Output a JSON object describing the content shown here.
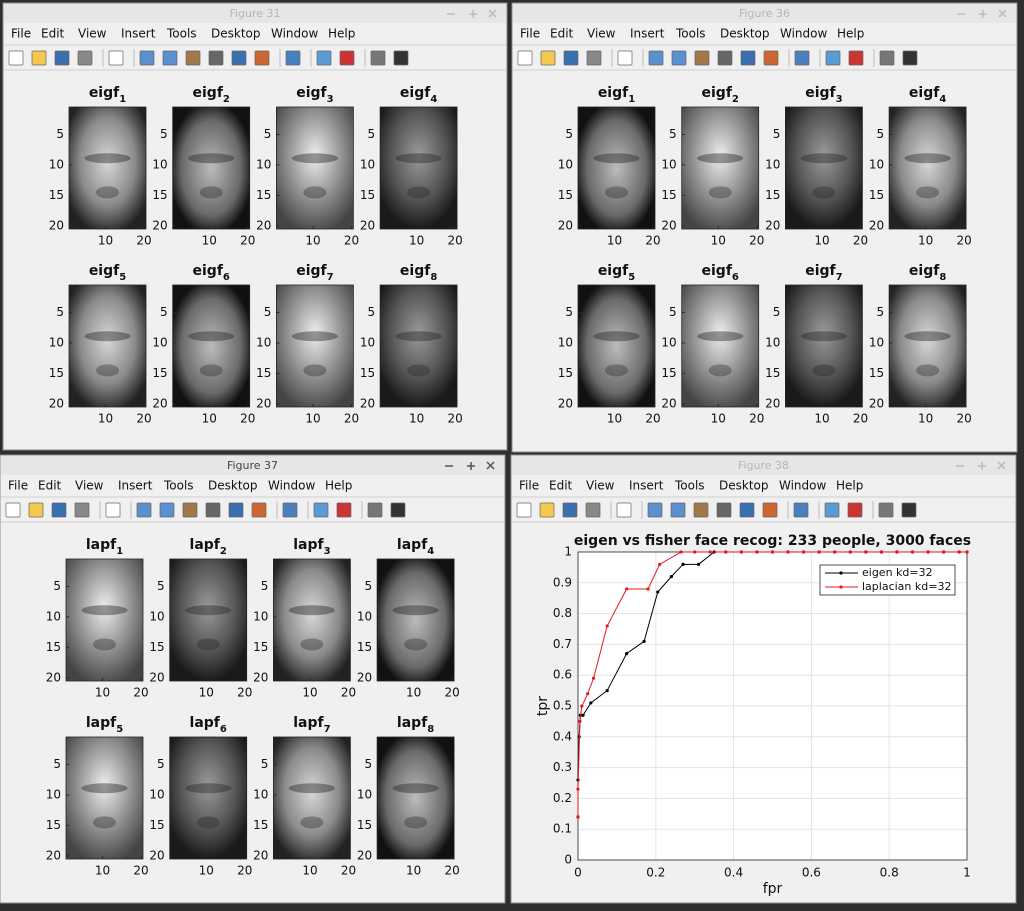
{
  "menu": [
    "File",
    "Edit",
    "View",
    "Insert",
    "Tools",
    "Desktop",
    "Window",
    "Help"
  ],
  "windows": [
    {
      "title": "Figure 31",
      "subplots": [
        {
          "base": "eigf",
          "sub": "1"
        },
        {
          "base": "eigf",
          "sub": "2"
        },
        {
          "base": "eigf",
          "sub": "3"
        },
        {
          "base": "eigf",
          "sub": "4"
        },
        {
          "base": "eigf",
          "sub": "5"
        },
        {
          "base": "eigf",
          "sub": "6"
        },
        {
          "base": "eigf",
          "sub": "7"
        },
        {
          "base": "eigf",
          "sub": "8"
        }
      ]
    },
    {
      "title": "Figure 36",
      "subplots": [
        {
          "base": "eigf",
          "sub": "1"
        },
        {
          "base": "eigf",
          "sub": "2"
        },
        {
          "base": "eigf",
          "sub": "3"
        },
        {
          "base": "eigf",
          "sub": "4"
        },
        {
          "base": "eigf",
          "sub": "5"
        },
        {
          "base": "eigf",
          "sub": "6"
        },
        {
          "base": "eigf",
          "sub": "7"
        },
        {
          "base": "eigf",
          "sub": "8"
        }
      ]
    },
    {
      "title": "Figure 37",
      "subplots": [
        {
          "base": "lapf",
          "sub": "1"
        },
        {
          "base": "lapf",
          "sub": "2"
        },
        {
          "base": "lapf",
          "sub": "3"
        },
        {
          "base": "lapf",
          "sub": "4"
        },
        {
          "base": "lapf",
          "sub": "5"
        },
        {
          "base": "lapf",
          "sub": "6"
        },
        {
          "base": "lapf",
          "sub": "7"
        },
        {
          "base": "lapf",
          "sub": "8"
        }
      ]
    },
    {
      "title": "Figure 38"
    }
  ],
  "image_axes": {
    "xlim": [
      0.5,
      20.5
    ],
    "ylim": [
      0.5,
      20.5
    ],
    "xticks": [
      10,
      20
    ],
    "yticks": [
      5,
      10,
      15,
      20
    ]
  },
  "chart_data": {
    "type": "line",
    "title": "eigen vs fisher face recog: 233 people, 3000 faces",
    "x_label": "fpr",
    "y_label": "tpr",
    "xlim": [
      0,
      1
    ],
    "ylim": [
      0,
      1
    ],
    "xticks": [
      0,
      0.2,
      0.4,
      0.6,
      0.8,
      1
    ],
    "yticks": [
      0,
      0.1,
      0.2,
      0.3,
      0.4,
      0.5,
      0.6,
      0.7,
      0.8,
      0.9,
      1
    ],
    "grid": true,
    "legend": "upper right",
    "series": [
      {
        "name": "eigen kd=32",
        "color": "#000000",
        "x": [
          0,
          0,
          0.003,
          0.006,
          0.013,
          0.033,
          0.075,
          0.125,
          0.17,
          0.205,
          0.24,
          0.27,
          0.31,
          0.35,
          0.38,
          0.42,
          0.46,
          0.5,
          0.54,
          0.58,
          0.62,
          0.66,
          0.7,
          0.74,
          0.78,
          0.82,
          0.86,
          0.9,
          0.94,
          0.98,
          1
        ],
        "values": [
          0.14,
          0.26,
          0.4,
          0.47,
          0.47,
          0.51,
          0.55,
          0.67,
          0.71,
          0.87,
          0.92,
          0.96,
          0.96,
          1,
          1,
          1,
          1,
          1,
          1,
          1,
          1,
          1,
          1,
          1,
          1,
          1,
          1,
          1,
          1,
          1,
          1
        ]
      },
      {
        "name": "laplacian kd=32",
        "color": "#e8191c",
        "x": [
          0,
          0,
          0.005,
          0.01,
          0.025,
          0.04,
          0.075,
          0.125,
          0.18,
          0.21,
          0.265,
          0.3,
          0.34,
          0.38,
          0.42,
          0.46,
          0.5,
          0.54,
          0.58,
          0.62,
          0.66,
          0.7,
          0.74,
          0.78,
          0.82,
          0.86,
          0.9,
          0.94,
          0.98,
          1
        ],
        "values": [
          0.14,
          0.23,
          0.45,
          0.5,
          0.54,
          0.59,
          0.76,
          0.88,
          0.88,
          0.96,
          1,
          1,
          1,
          1,
          1,
          1,
          1,
          1,
          1,
          1,
          1,
          1,
          1,
          1,
          1,
          1,
          1,
          1,
          1,
          1
        ]
      }
    ]
  }
}
